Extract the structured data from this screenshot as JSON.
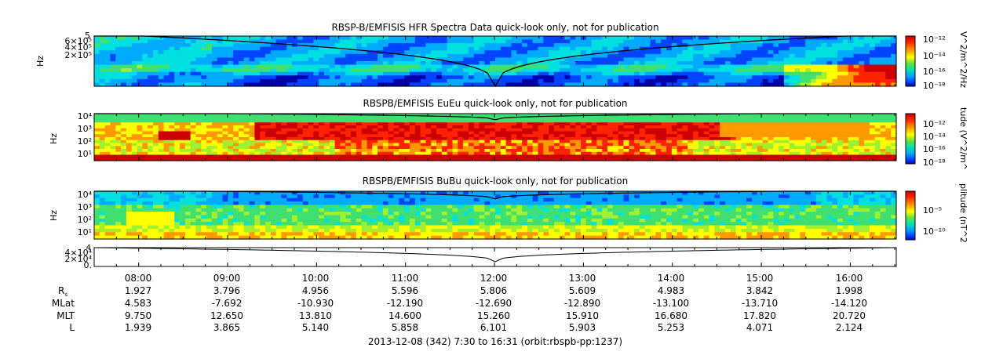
{
  "chart_data": {
    "type": "heatmap",
    "x_range": [
      "07:30",
      "16:31"
    ],
    "x_ticks": [
      "08:00",
      "09:00",
      "10:00",
      "11:00",
      "12:00",
      "13:00",
      "14:00",
      "15:00",
      "16:00"
    ],
    "panels": [
      {
        "id": "hfr",
        "title": "RBSP-B/EMFISIS  HFR Spectra Data quick-look only, not for publication",
        "ylabel": "Hz",
        "y_ticks": [
          "6×10⁵",
          "4×10⁵",
          "2×10⁵"
        ],
        "y_top_label": "5",
        "colorbar_label": "V^2/m^2/Hz",
        "colorbar_ticks": [
          "10⁻¹²",
          "10⁻¹⁴",
          "10⁻¹⁶",
          "10⁻¹⁸"
        ]
      },
      {
        "id": "eueu",
        "title": "RBSPB/EMFISIS  EuEu quick-look only, not for publication",
        "ylabel": "Hz",
        "y_ticks": [
          "10⁴",
          "10³",
          "10²",
          "10¹"
        ],
        "colorbar_label": "tude (V^2/m^",
        "colorbar_ticks": [
          "10⁻¹²",
          "10⁻¹⁴",
          "10⁻¹⁶",
          "10⁻¹⁸"
        ]
      },
      {
        "id": "bubu",
        "title": "RBSPB/EMFISIS  BuBu quick-look only, not for publication",
        "ylabel": "Hz",
        "y_ticks": [
          "10⁴",
          "10³",
          "10²",
          "10¹"
        ],
        "colorbar_label": "plitude (nT^2",
        "colorbar_ticks": [
          "10⁻⁵",
          "10⁻¹⁰"
        ]
      }
    ],
    "line_panel": {
      "y_ticks": [
        "4×10⁴",
        "2×10⁴",
        "0."
      ],
      "y_top_label": "4"
    },
    "ephemeris": {
      "labels": [
        "R",
        "MLat",
        "MLT",
        "L"
      ],
      "r_subscript": "s",
      "rows": [
        [
          "1.927",
          "3.796",
          "4.956",
          "5.596",
          "5.806",
          "5.609",
          "4.983",
          "3.842",
          "1.998"
        ],
        [
          "4.583",
          "-7.692",
          "-10.930",
          "-12.190",
          "-12.690",
          "-12.890",
          "-13.100",
          "-13.710",
          "-14.120"
        ],
        [
          "9.750",
          "12.650",
          "13.810",
          "14.600",
          "15.260",
          "15.910",
          "16.680",
          "17.820",
          "20.720"
        ],
        [
          "1.939",
          "3.865",
          "5.140",
          "5.858",
          "6.101",
          "5.903",
          "5.253",
          "4.071",
          "2.124"
        ]
      ]
    },
    "footer": "2013-12-08 (342) 7:30 to 16:31 (orbit:rbspb-pp:1237)",
    "colormap": [
      "#0000aa",
      "#0044ff",
      "#00aaff",
      "#00e0e0",
      "#40e070",
      "#a0f030",
      "#ffff00",
      "#ff9900",
      "#ff2200",
      "#cc0000"
    ]
  }
}
